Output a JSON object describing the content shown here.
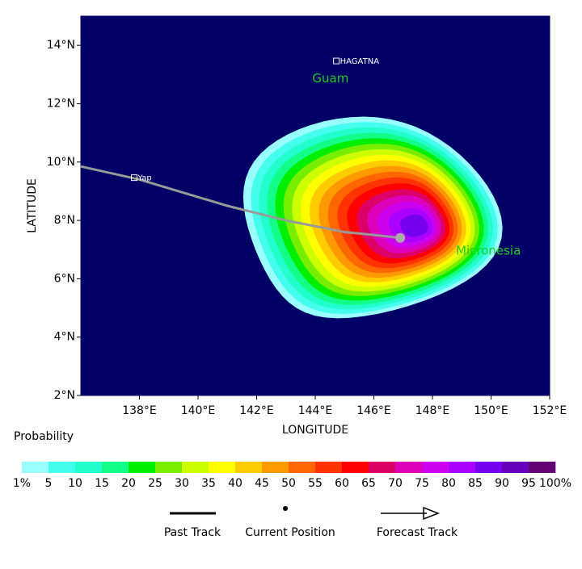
{
  "map": {
    "ylabel": "LATITUDE",
    "xlabel": "LONGITUDE",
    "xlim": [
      136,
      152
    ],
    "ylim": [
      2,
      15
    ],
    "xticks": [
      {
        "value": 138,
        "label": "138°E"
      },
      {
        "value": 140,
        "label": "140°E"
      },
      {
        "value": 142,
        "label": "142°E"
      },
      {
        "value": 144,
        "label": "144°E"
      },
      {
        "value": 146,
        "label": "146°E"
      },
      {
        "value": 148,
        "label": "148°E"
      },
      {
        "value": 150,
        "label": "150°E"
      },
      {
        "value": 152,
        "label": "152°E"
      }
    ],
    "yticks": [
      {
        "value": 2,
        "label": "2°N"
      },
      {
        "value": 4,
        "label": "4°N"
      },
      {
        "value": 6,
        "label": "6°N"
      },
      {
        "value": 8,
        "label": "8°N"
      },
      {
        "value": 10,
        "label": "10°N"
      },
      {
        "value": 12,
        "label": "12°N"
      },
      {
        "value": 14,
        "label": "14°N"
      }
    ],
    "places": [
      {
        "label": "HAGATNA",
        "lon": 144.9,
        "lat": 13.45,
        "color": "#ffffff"
      },
      {
        "label": "Guam",
        "lon": 143.9,
        "lat": 12.85,
        "color": "#22cc22"
      },
      {
        "label": "Yap",
        "lon": 138.0,
        "lat": 9.45,
        "color": "#ffffff"
      },
      {
        "label": "Micronesia",
        "lon": 148.8,
        "lat": 6.95,
        "color": "#22cc22"
      }
    ],
    "track": {
      "lon": [
        136,
        138,
        141,
        143,
        145,
        146,
        146.9
      ],
      "lat": [
        9.85,
        9.4,
        8.5,
        8.0,
        7.6,
        7.5,
        7.4
      ]
    },
    "current_position": {
      "lon": 146.9,
      "lat": 7.4
    }
  },
  "colorbar": {
    "title": "Probability",
    "colors": [
      "#99ffff",
      "#44ffee",
      "#22ffcc",
      "#11ff88",
      "#00ee00",
      "#77ee00",
      "#ccff00",
      "#ffff00",
      "#ffcc00",
      "#ff9900",
      "#ff6600",
      "#ff3300",
      "#ff0000",
      "#dd0066",
      "#dd00bb",
      "#cc00ee",
      "#aa00ff",
      "#7700ee",
      "#6600bb",
      "#660077"
    ],
    "ticks": [
      {
        "value": 1,
        "label": "1%"
      },
      5,
      10,
      15,
      20,
      25,
      30,
      35,
      40,
      45,
      50,
      55,
      60,
      65,
      70,
      75,
      80,
      85,
      90,
      95,
      {
        "value": 100,
        "label": "100%"
      }
    ]
  },
  "legend": {
    "past": "Past Track",
    "current": "Current Position",
    "forecast": "Forecast Track"
  }
}
